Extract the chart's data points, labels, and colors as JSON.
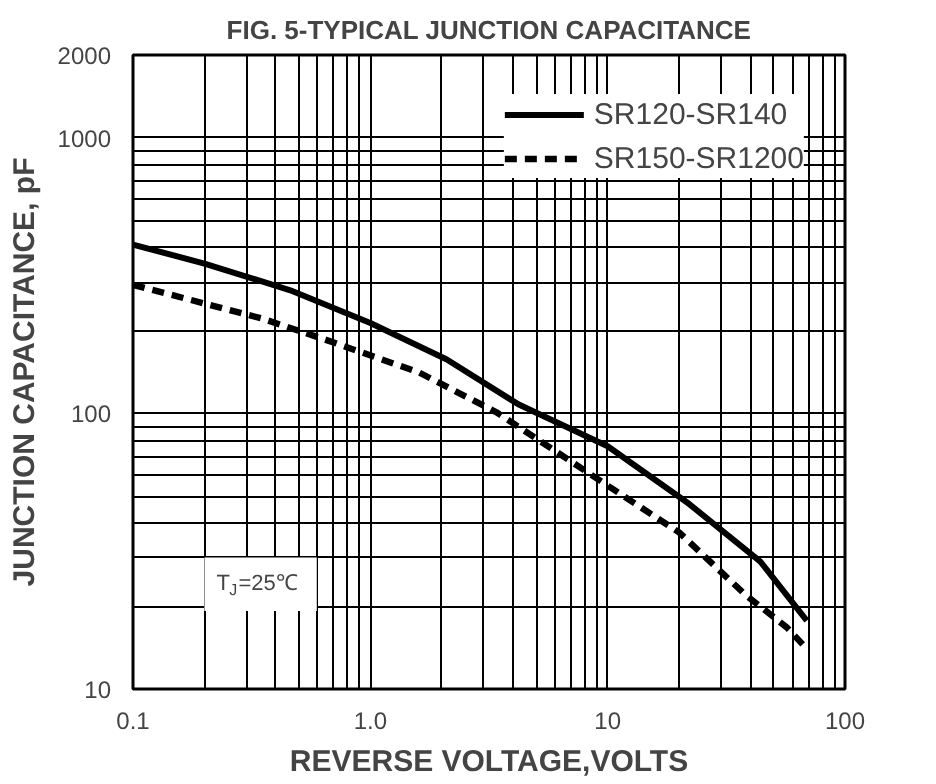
{
  "chart_data": {
    "type": "line",
    "title": "FIG. 5-TYPICAL JUNCTION CAPACITANCE",
    "xlabel": "REVERSE VOLTAGE,VOLTS",
    "ylabel": "JUNCTION CAPACITANCE, pF",
    "annotations": [
      "T$_{J}$=25℃"
    ],
    "log": "xy",
    "grid": true,
    "legend": "top right",
    "xlim": [
      0.1,
      100
    ],
    "ylim": [
      10,
      2000
    ],
    "xticks": [
      {
        "value": 0.1,
        "label": "0.1"
      },
      {
        "value": 0.2,
        "label": null
      },
      {
        "value": 0.3,
        "label": null
      },
      {
        "value": 0.4,
        "label": null
      },
      {
        "value": 0.5,
        "label": null
      },
      {
        "value": 0.6,
        "label": null
      },
      {
        "value": 0.7,
        "label": null
      },
      {
        "value": 0.8,
        "label": null
      },
      {
        "value": 0.9,
        "label": null
      },
      {
        "value": 1,
        "label": "1.0"
      },
      {
        "value": 2,
        "label": null
      },
      {
        "value": 3,
        "label": null
      },
      {
        "value": 4,
        "label": null
      },
      {
        "value": 5,
        "label": null
      },
      {
        "value": 6,
        "label": null
      },
      {
        "value": 7,
        "label": null
      },
      {
        "value": 8,
        "label": null
      },
      {
        "value": 9,
        "label": null
      },
      10,
      {
        "value": 20,
        "label": null
      },
      {
        "value": 30,
        "label": null
      },
      {
        "value": 40,
        "label": null
      },
      {
        "value": 50,
        "label": null
      },
      {
        "value": 60,
        "label": null
      },
      {
        "value": 70,
        "label": null
      },
      {
        "value": 80,
        "label": null
      },
      {
        "value": 90,
        "label": null
      },
      100
    ],
    "yticks": [
      10,
      {
        "value": 20,
        "label": null
      },
      {
        "value": 30,
        "label": null
      },
      {
        "value": 40,
        "label": null
      },
      {
        "value": 50,
        "label": null
      },
      {
        "value": 60,
        "label": null
      },
      {
        "value": 70,
        "label": null
      },
      {
        "value": 80,
        "label": null
      },
      {
        "value": 90,
        "label": null
      },
      100,
      {
        "value": 200,
        "label": null
      },
      {
        "value": 300,
        "label": null
      },
      {
        "value": 400,
        "label": null
      },
      {
        "value": 500,
        "label": null
      },
      {
        "value": 600,
        "label": null
      },
      {
        "value": 700,
        "label": null
      },
      {
        "value": 800,
        "label": null
      },
      {
        "value": 900,
        "label": null
      },
      1000,
      2000
    ],
    "series": [
      {
        "name": "SR120-SR140",
        "color": "#000000",
        "line_style": "solid",
        "x": [
          0.1,
          0.2,
          0.46,
          1.0,
          2.1,
          4.2,
          10,
          22,
          44,
          69
        ],
        "values": [
          410,
          350,
          280,
          213,
          157,
          108,
          76,
          47,
          29,
          17.7
        ]
      },
      {
        "name": "SR150-SR1200",
        "color": "#000000",
        "line_style": "dashed",
        "x": [
          0.1,
          0.35,
          0.65,
          1.6,
          3.4,
          9.6,
          20,
          38,
          57,
          69
        ],
        "values": [
          293,
          221,
          185,
          141,
          101,
          56,
          37,
          22,
          16.7,
          14
        ]
      }
    ]
  }
}
